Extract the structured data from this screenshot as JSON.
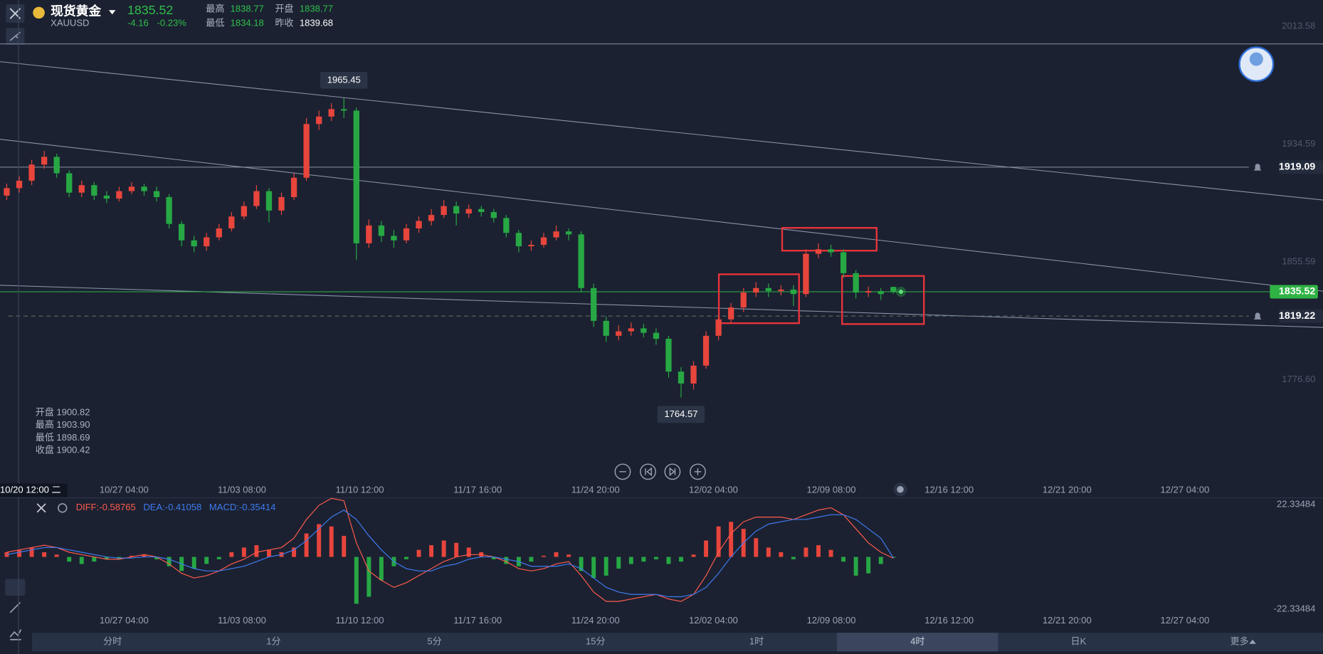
{
  "header": {
    "name": "现货黄金",
    "symbol": "XAUUSD",
    "price": "1835.52",
    "change": "-4.16",
    "change_pct": "-0.23%",
    "stats": [
      {
        "label": "最高",
        "value": "1838.77"
      },
      {
        "label": "开盘",
        "value": "1838.77"
      },
      {
        "label": "最低",
        "value": "1834.18"
      },
      {
        "label": "昨收",
        "value": "1839.68"
      }
    ]
  },
  "crosshair": {
    "time": "10/20 12:00 二",
    "ohlc": [
      {
        "label": "开盘",
        "value": "1900.82"
      },
      {
        "label": "最高",
        "value": "1903.90"
      },
      {
        "label": "最低",
        "value": "1898.69"
      },
      {
        "label": "收盘",
        "value": "1900.42"
      }
    ]
  },
  "tabs": [
    "分时",
    "1分",
    "5分",
    "15分",
    "1时",
    "4时",
    "日K",
    "更多"
  ],
  "selected_tab": "4时",
  "chart_data": [
    {
      "type": "candlestick",
      "up_color": "#e8453c",
      "down_color": "#27a844",
      "ylim": [
        1714.3,
        2031.13
      ],
      "yticks": [
        2013.58,
        1934.59,
        1855.59,
        {
          "value": 1776.6,
          "label": "1776.60"
        }
      ],
      "x_labels": [
        "10/27 04:00",
        "11/03 08:00",
        "11/10 12:00",
        "11/17 16:00",
        "11/24 20:00",
        "12/02 04:00",
        "12/09 08:00",
        "12/16 12:00",
        "12/21 20:00",
        "12/27 04:00"
      ],
      "extremes": [
        1965.45,
        1764.57
      ],
      "price_lines": [
        {
          "value": 1919.09,
          "color": "#8a93a6",
          "dashed": false,
          "bell": true
        },
        {
          "value": 1835.52,
          "color": "#2fb344",
          "dashed": false,
          "bell": false
        },
        {
          "value": 1819.22,
          "color": "#5f7a6a",
          "dashed": true,
          "bell": true
        }
      ],
      "candles": [
        [
          1900,
          1908,
          1897,
          1905
        ],
        [
          1905,
          1913,
          1902,
          1910
        ],
        [
          1910,
          1924,
          1907,
          1920.8
        ],
        [
          1920.8,
          1930,
          1918,
          1926
        ],
        [
          1926,
          1928,
          1912,
          1915
        ],
        [
          1915,
          1917,
          1899,
          1902
        ],
        [
          1902,
          1910,
          1899,
          1907
        ],
        [
          1907,
          1909,
          1897,
          1900
        ],
        [
          1900,
          1903,
          1895,
          1898
        ],
        [
          1898,
          1906,
          1896,
          1903
        ],
        [
          1903,
          1909,
          1901,
          1906
        ],
        [
          1906,
          1908,
          1900,
          1903
        ],
        [
          1903,
          1906,
          1896,
          1899
        ],
        [
          1899,
          1901,
          1878,
          1881
        ],
        [
          1881,
          1883,
          1866,
          1870
        ],
        [
          1870,
          1873,
          1862,
          1866
        ],
        [
          1866,
          1875,
          1863,
          1872
        ],
        [
          1872,
          1881,
          1870,
          1878
        ],
        [
          1878,
          1889,
          1876,
          1886
        ],
        [
          1886,
          1896,
          1884,
          1893
        ],
        [
          1893,
          1907,
          1891,
          1903
        ],
        [
          1903,
          1905,
          1882,
          1890
        ],
        [
          1890,
          1902,
          1887,
          1899
        ],
        [
          1899,
          1915,
          1897,
          1912
        ],
        [
          1912,
          1952,
          1910,
          1948
        ],
        [
          1948,
          1957,
          1944,
          1953
        ],
        [
          1953,
          1962,
          1950,
          1958
        ],
        [
          1958,
          1965.45,
          1952,
          1957
        ],
        [
          1957,
          1959,
          1857,
          1868
        ],
        [
          1868,
          1884,
          1865,
          1880
        ],
        [
          1880,
          1883,
          1869,
          1873
        ],
        [
          1873,
          1877,
          1865,
          1870
        ],
        [
          1870,
          1881,
          1868,
          1878
        ],
        [
          1878,
          1886,
          1875,
          1883
        ],
        [
          1883,
          1891,
          1880,
          1887
        ],
        [
          1887,
          1897,
          1885,
          1893
        ],
        [
          1893,
          1896,
          1880,
          1888
        ],
        [
          1888,
          1894,
          1885,
          1891
        ],
        [
          1891,
          1893,
          1886,
          1889
        ],
        [
          1889,
          1891,
          1882,
          1885
        ],
        [
          1885,
          1887,
          1872,
          1875
        ],
        [
          1875,
          1877,
          1862,
          1866
        ],
        [
          1866,
          1870,
          1863,
          1867
        ],
        [
          1867,
          1875,
          1865,
          1872
        ],
        [
          1872,
          1880,
          1870,
          1876
        ],
        [
          1876,
          1878,
          1870,
          1874
        ],
        [
          1874,
          1876,
          1835,
          1838
        ],
        [
          1838,
          1841,
          1812,
          1816
        ],
        [
          1816,
          1819,
          1802,
          1806
        ],
        [
          1806,
          1813,
          1803,
          1809
        ],
        [
          1809,
          1815,
          1806,
          1811
        ],
        [
          1811,
          1814,
          1805,
          1808
        ],
        [
          1808,
          1811,
          1800,
          1804
        ],
        [
          1804,
          1806,
          1778,
          1782
        ],
        [
          1782,
          1785,
          1764.57,
          1774
        ],
        [
          1774,
          1789,
          1770,
          1786
        ],
        [
          1786,
          1809,
          1784,
          1806
        ],
        [
          1806,
          1820,
          1803,
          1817
        ],
        [
          1817,
          1828,
          1814,
          1825
        ],
        [
          1825,
          1838,
          1822,
          1835
        ],
        [
          1835,
          1842,
          1832,
          1838
        ],
        [
          1838,
          1841,
          1832,
          1836
        ],
        [
          1836,
          1840,
          1833,
          1837
        ],
        [
          1837,
          1840,
          1826,
          1834
        ],
        [
          1834,
          1864,
          1832,
          1861
        ],
        [
          1861,
          1868,
          1858,
          1864
        ],
        [
          1864,
          1867,
          1859,
          1862
        ],
        [
          1862,
          1864,
          1845,
          1848
        ],
        [
          1848,
          1850,
          1831,
          1835
        ],
        [
          1835,
          1839,
          1832,
          1836
        ],
        [
          1836,
          1838,
          1830,
          1834
        ],
        [
          1838.77,
          1838.77,
          1834.18,
          1835.52
        ]
      ]
    },
    {
      "type": "macd",
      "up_color": "#e8453c",
      "down_color": "#27a844",
      "ylim": [
        -22.33484,
        22.33484
      ],
      "yticks": [
        22.33484,
        -22.33484
      ],
      "series": [
        {
          "label": "DIFF:-0.58765",
          "kind": "line",
          "color": "#ff5a4c",
          "values": [
            2,
            3,
            4,
            5,
            4,
            2,
            1,
            0,
            -1,
            -1,
            0,
            1,
            0,
            -3,
            -7,
            -9,
            -8,
            -6,
            -3,
            -1,
            2,
            3,
            4,
            8,
            16,
            22,
            25,
            24,
            6,
            -6,
            -10,
            -13,
            -11,
            -8,
            -5,
            -2,
            0,
            1,
            1,
            0,
            -2,
            -5,
            -6,
            -5,
            -3,
            -2,
            -8,
            -15,
            -19,
            -19,
            -18,
            -17,
            -16,
            -18,
            -19,
            -16,
            -8,
            2,
            10,
            15,
            17,
            17,
            17,
            16,
            18,
            20,
            21,
            18,
            12,
            6,
            2,
            -0.58765
          ]
        },
        {
          "label": "DEA:-0.41058",
          "kind": "line",
          "color": "#3f7bf0",
          "values": [
            1,
            2,
            3,
            4,
            4,
            3,
            2,
            1,
            0,
            -0.5,
            -0.5,
            0,
            0,
            -1,
            -3,
            -5,
            -6,
            -6,
            -5,
            -4,
            -2,
            0,
            1,
            3,
            7,
            12,
            17,
            20,
            16,
            9,
            3,
            -2,
            -5,
            -6,
            -6,
            -4,
            -3,
            -1,
            0,
            0,
            -1,
            -2,
            -4,
            -4,
            -4,
            -3,
            -5,
            -9,
            -13,
            -15,
            -16,
            -16,
            -16,
            -17,
            -17,
            -16,
            -13,
            -7,
            0,
            6,
            11,
            14,
            15,
            16,
            16,
            17,
            18,
            18,
            16,
            12,
            8,
            -0.41058
          ]
        },
        {
          "label": "MACD:-0.35414",
          "kind": "bar",
          "color": "#3f7bf0",
          "values": [
            2,
            3,
            4,
            2,
            1,
            -2,
            -3,
            -2,
            -1,
            -1,
            0.5,
            1,
            -1,
            -4,
            -6,
            -5,
            -3,
            -1,
            2,
            4,
            5,
            3,
            2,
            4,
            10,
            14,
            13,
            9,
            -20,
            -17,
            -10,
            -4,
            -1,
            3,
            5,
            7,
            6,
            4,
            2,
            -1,
            -3,
            -4,
            -2,
            0.5,
            2,
            1,
            -6,
            -9,
            -8,
            -5,
            -3,
            -2,
            -1,
            -3,
            -2,
            1,
            7,
            13,
            15,
            12,
            8,
            4,
            2,
            -1,
            4,
            5,
            3,
            -2,
            -8,
            -7,
            -3,
            -0.35414
          ]
        }
      ]
    }
  ]
}
